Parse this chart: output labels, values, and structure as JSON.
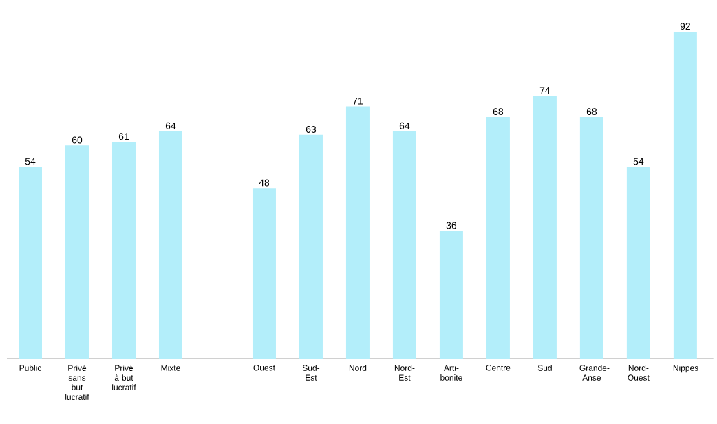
{
  "chart_data": {
    "type": "bar",
    "categories": [
      "Public",
      "Privé sans but lucratif",
      "Privé à but lucratif",
      "Mixte",
      null,
      "Ouest",
      "Sud-Est",
      "Nord",
      "Nord-Est",
      "Arti-bonite",
      "Centre",
      "Sud",
      "Grande-Anse",
      "Nord-Ouest",
      "Nippes"
    ],
    "values": [
      54,
      60,
      61,
      64,
      null,
      48,
      63,
      71,
      64,
      36,
      68,
      74,
      68,
      54,
      92
    ],
    "color": "#b3eefa",
    "data_labels": true
  }
}
